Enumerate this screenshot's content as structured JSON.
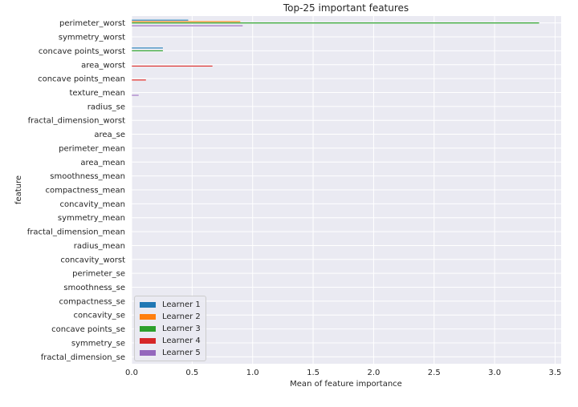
{
  "chart_data": {
    "type": "bar",
    "orientation": "horizontal",
    "title": "Top-25 important features",
    "xlabel": "Mean of feature importance",
    "ylabel": "feature",
    "xlim": [
      0,
      3.55
    ],
    "xticks": [
      0.0,
      0.5,
      1.0,
      1.5,
      2.0,
      2.5,
      3.0,
      3.5
    ],
    "xtick_labels": [
      "0.0",
      "0.5",
      "1.0",
      "1.5",
      "2.0",
      "2.5",
      "3.0",
      "3.5"
    ],
    "grid": true,
    "legend_position": "lower-left",
    "categories": [
      "perimeter_worst",
      "symmetry_worst",
      "concave points_worst",
      "area_worst",
      "concave points_mean",
      "texture_mean",
      "radius_se",
      "fractal_dimension_worst",
      "area_se",
      "perimeter_mean",
      "area_mean",
      "smoothness_mean",
      "compactness_mean",
      "concavity_mean",
      "symmetry_mean",
      "fractal_dimension_mean",
      "radius_mean",
      "concavity_worst",
      "perimeter_se",
      "smoothness_se",
      "compactness_se",
      "concavity_se",
      "concave points_se",
      "symmetry_se",
      "fractal_dimension_se"
    ],
    "series": [
      {
        "name": "Learner 1",
        "color": "#1f77b4",
        "values": [
          0.47,
          0.0,
          0.26,
          0.0,
          0.0,
          0.0,
          0.0,
          0.0,
          0.0,
          0.0,
          0.0,
          0.0,
          0.0,
          0.0,
          0.0,
          0.0,
          0.0,
          0.0,
          0.0,
          0.0,
          0.0,
          0.0,
          0.0,
          0.0,
          0.0
        ]
      },
      {
        "name": "Learner 2",
        "color": "#ff7f0e",
        "values": [
          0.9,
          0.0,
          0.0,
          0.0,
          0.0,
          0.0,
          0.0,
          0.0,
          0.0,
          0.0,
          0.0,
          0.0,
          0.0,
          0.0,
          0.0,
          0.0,
          0.0,
          0.0,
          0.0,
          0.0,
          0.0,
          0.0,
          0.0,
          0.0,
          0.0
        ]
      },
      {
        "name": "Learner 3",
        "color": "#2ca02c",
        "values": [
          3.37,
          0.0,
          0.26,
          0.0,
          0.0,
          0.0,
          0.0,
          0.0,
          0.0,
          0.0,
          0.0,
          0.0,
          0.0,
          0.0,
          0.0,
          0.0,
          0.0,
          0.0,
          0.0,
          0.0,
          0.0,
          0.0,
          0.0,
          0.0,
          0.0
        ]
      },
      {
        "name": "Learner 4",
        "color": "#d62728",
        "values": [
          0.0,
          0.0,
          0.0,
          0.67,
          0.12,
          0.0,
          0.0,
          0.0,
          0.0,
          0.0,
          0.0,
          0.0,
          0.0,
          0.0,
          0.0,
          0.0,
          0.0,
          0.0,
          0.0,
          0.0,
          0.0,
          0.0,
          0.0,
          0.0,
          0.0
        ]
      },
      {
        "name": "Learner 5",
        "color": "#9467bd",
        "values": [
          0.92,
          0.0,
          0.0,
          0.0,
          0.0,
          0.06,
          0.0,
          0.0,
          0.0,
          0.0,
          0.0,
          0.0,
          0.0,
          0.0,
          0.0,
          0.0,
          0.0,
          0.0,
          0.0,
          0.0,
          0.0,
          0.0,
          0.0,
          0.0,
          0.0
        ]
      }
    ]
  }
}
